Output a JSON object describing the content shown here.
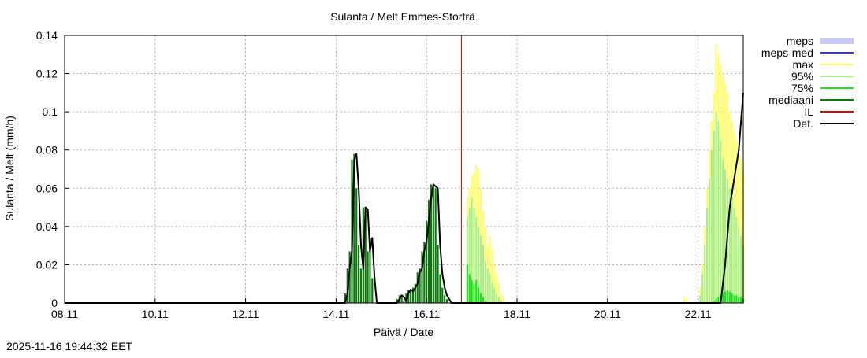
{
  "chart_data": {
    "type": "bar",
    "title": "Sulanta / Melt  Emmes-Storträ",
    "xlabel": "Päivä / Date",
    "ylabel": "Sulanta / Melt (mm/h)",
    "timestamp": "2025-11-16 19:44:32 EET",
    "x_unit": "days since 08.11",
    "xlim": [
      0,
      15
    ],
    "ylim": [
      0,
      0.14
    ],
    "grid": true,
    "legend_position": "right",
    "x_ticks": [
      {
        "x": 0,
        "label": "08.11"
      },
      {
        "x": 2,
        "label": "10.11"
      },
      {
        "x": 4,
        "label": "12.11"
      },
      {
        "x": 6,
        "label": "14.11"
      },
      {
        "x": 8,
        "label": "16.11"
      },
      {
        "x": 10,
        "label": "18.11"
      },
      {
        "x": 12,
        "label": "20.11"
      },
      {
        "x": 14,
        "label": "22.11"
      }
    ],
    "y_ticks": [
      {
        "y": 0,
        "label": "0"
      },
      {
        "y": 0.02,
        "label": "0.02"
      },
      {
        "y": 0.04,
        "label": "0.04"
      },
      {
        "y": 0.06,
        "label": "0.06"
      },
      {
        "y": 0.08,
        "label": "0.08"
      },
      {
        "y": 0.1,
        "label": "0.1"
      },
      {
        "y": 0.12,
        "label": "0.12"
      },
      {
        "y": 0.14,
        "label": "0.14"
      }
    ],
    "forecast_start_x": 8.77,
    "legend": [
      {
        "name": "meps",
        "color": "#c8c8f0",
        "style": "band"
      },
      {
        "name": "meps-med",
        "color": "#3c3cb4",
        "style": "line"
      },
      {
        "name": "max",
        "color": "#ffff64",
        "style": "line"
      },
      {
        "name": "95%",
        "color": "#a8f080",
        "style": "line"
      },
      {
        "name": "75%",
        "color": "#14e614",
        "style": "line"
      },
      {
        "name": "mediaani",
        "color": "#0a780a",
        "style": "line"
      },
      {
        "name": "IL",
        "color": "#e60000",
        "style": "line"
      },
      {
        "name": "Det.",
        "color": "#000000",
        "style": "line"
      }
    ],
    "observed_series": {
      "name": "mediaani",
      "color": "#0a780a",
      "bar_width": 0.0417,
      "x": [
        6.2,
        6.25,
        6.3,
        6.35,
        6.4,
        6.45,
        6.5,
        6.55,
        6.6,
        6.65,
        6.7,
        6.75,
        6.8,
        6.85,
        6.9,
        6.95,
        7.0,
        7.05,
        7.1,
        7.15,
        7.2,
        7.25,
        7.3,
        7.35,
        7.4,
        7.45,
        7.5,
        7.55,
        7.6,
        7.65,
        7.7,
        7.75,
        7.8,
        7.85,
        7.9,
        7.95,
        8.0,
        8.05,
        8.1,
        8.15,
        8.2,
        8.25,
        8.3,
        8.35,
        8.4,
        8.45,
        8.5
      ],
      "values": [
        0.005,
        0.018,
        0.027,
        0.075,
        0.078,
        0.06,
        0.03,
        0.018,
        0.05,
        0.049,
        0.027,
        0.034,
        0.013,
        0,
        0,
        0,
        0,
        0,
        0,
        0,
        0,
        0,
        0,
        0.002,
        0.004,
        0.003,
        0.001,
        0.005,
        0.007,
        0.006,
        0.008,
        0.01,
        0.016,
        0.018,
        0.027,
        0.032,
        0.043,
        0.054,
        0.062,
        0.061,
        0.06,
        0.03,
        0.015,
        0.008,
        0.004,
        0.002,
        0
      ]
    },
    "ensemble": {
      "bar_width": 0.0417,
      "x": [
        8.9,
        8.95,
        9.0,
        9.05,
        9.1,
        9.15,
        9.2,
        9.25,
        9.3,
        9.35,
        9.4,
        9.45,
        9.5,
        9.55,
        9.6,
        9.65,
        9.7,
        13.7,
        13.75,
        13.8,
        13.85,
        13.9,
        13.95,
        14.0,
        14.05,
        14.1,
        14.15,
        14.2,
        14.25,
        14.3,
        14.35,
        14.4,
        14.45,
        14.5,
        14.55,
        14.6,
        14.65,
        14.7,
        14.75,
        14.8,
        14.85,
        14.9,
        14.95,
        15.0
      ],
      "max": [
        0.055,
        0.06,
        0.066,
        0.068,
        0.072,
        0.07,
        0.06,
        0.048,
        0.04,
        0.03,
        0.035,
        0.028,
        0.02,
        0.015,
        0.01,
        0.005,
        0.003,
        0.003,
        0.002,
        0,
        0,
        0,
        0,
        0,
        0.008,
        0.02,
        0.04,
        0.06,
        0.08,
        0.095,
        0.11,
        0.135,
        0.13,
        0.125,
        0.12,
        0.115,
        0.11,
        0.1,
        0.095,
        0.09,
        0.085,
        0.08,
        0.075,
        0.07
      ],
      "p95": [
        0.045,
        0.05,
        0.055,
        0.05,
        0.045,
        0.04,
        0.035,
        0.03,
        0.022,
        0.018,
        0.015,
        0.01,
        0.008,
        0.005,
        0.003,
        0.001,
        0,
        0,
        0,
        0,
        0,
        0,
        0,
        0,
        0.004,
        0.015,
        0.03,
        0.05,
        0.065,
        0.08,
        0.09,
        0.1,
        0.095,
        0.085,
        0.075,
        0.07,
        0.065,
        0.06,
        0.055,
        0.05,
        0.045,
        0.04,
        0.035,
        0.03
      ],
      "p75": [
        0.02,
        0.015,
        0.012,
        0.01,
        0.012,
        0.008,
        0.005,
        0.003,
        0.001,
        0,
        0,
        0,
        0,
        0,
        0,
        0,
        0,
        0,
        0,
        0,
        0,
        0,
        0,
        0,
        0,
        0,
        0,
        0,
        0,
        0,
        0.001,
        0.002,
        0.003,
        0.004,
        0.005,
        0.006,
        0.007,
        0.006,
        0.005,
        0.004,
        0.004,
        0.003,
        0.003,
        0.002
      ]
    },
    "det_series": {
      "name": "Det.",
      "color": "#000000",
      "points": [
        [
          0,
          0
        ],
        [
          6.2,
          0
        ],
        [
          6.25,
          0.005
        ],
        [
          6.3,
          0.018
        ],
        [
          6.35,
          0.027
        ],
        [
          6.4,
          0.075
        ],
        [
          6.45,
          0.078
        ],
        [
          6.5,
          0.06
        ],
        [
          6.55,
          0.03
        ],
        [
          6.6,
          0.018
        ],
        [
          6.65,
          0.05
        ],
        [
          6.7,
          0.049
        ],
        [
          6.75,
          0.027
        ],
        [
          6.8,
          0.034
        ],
        [
          6.85,
          0.013
        ],
        [
          6.9,
          0
        ],
        [
          7.35,
          0
        ],
        [
          7.4,
          0.002
        ],
        [
          7.45,
          0.004
        ],
        [
          7.5,
          0.003
        ],
        [
          7.55,
          0.001
        ],
        [
          7.6,
          0.005
        ],
        [
          7.65,
          0.007
        ],
        [
          7.7,
          0.006
        ],
        [
          7.75,
          0.008
        ],
        [
          7.8,
          0.01
        ],
        [
          7.85,
          0.016
        ],
        [
          7.9,
          0.018
        ],
        [
          7.95,
          0.027
        ],
        [
          8.0,
          0.032
        ],
        [
          8.05,
          0.043
        ],
        [
          8.1,
          0.054
        ],
        [
          8.15,
          0.062
        ],
        [
          8.2,
          0.061
        ],
        [
          8.25,
          0.06
        ],
        [
          8.3,
          0.03
        ],
        [
          8.35,
          0.015
        ],
        [
          8.4,
          0.008
        ],
        [
          8.45,
          0.004
        ],
        [
          8.5,
          0.002
        ],
        [
          8.55,
          0
        ],
        [
          14.5,
          0
        ],
        [
          14.6,
          0.02
        ],
        [
          14.7,
          0.05
        ],
        [
          14.8,
          0.065
        ],
        [
          14.9,
          0.08
        ],
        [
          15.0,
          0.11
        ]
      ]
    }
  }
}
